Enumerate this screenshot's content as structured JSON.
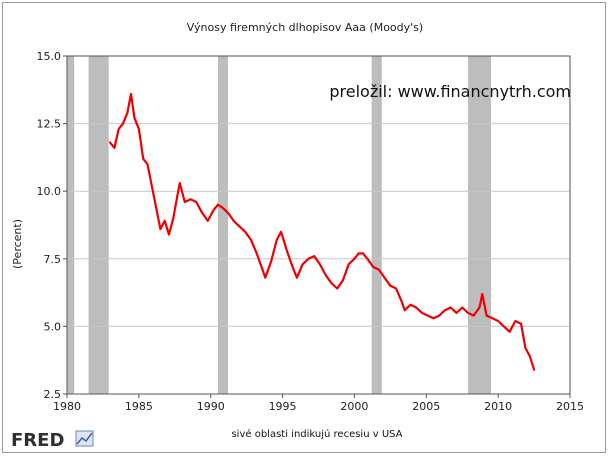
{
  "chart_data": {
    "type": "line",
    "title": "Výnosy firemných dlhopisov Aaa (Moody's)",
    "ylabel": "(Percent)",
    "xlabel": "",
    "xlim": [
      1980,
      2015
    ],
    "ylim": [
      2.5,
      15.0
    ],
    "x_ticks": [
      "1980",
      "1985",
      "1990",
      "1995",
      "2000",
      "2005",
      "2010",
      "2015"
    ],
    "y_ticks": [
      "2.5",
      "5.0",
      "7.5",
      "10.0",
      "12.5",
      "15.0"
    ],
    "grid": true,
    "annotation": "preložil: www.financnytrh.com",
    "footer_note": "sivé oblasti indikujú recesiu v USA",
    "brand": "FRED",
    "line_color": "#ee0000",
    "recession_color": "#bdbdbd",
    "recessions": [
      [
        1980.0,
        1980.5
      ],
      [
        1981.5,
        1982.9
      ],
      [
        1990.5,
        1991.2
      ],
      [
        2001.2,
        2001.9
      ],
      [
        2007.9,
        2009.5
      ]
    ],
    "series": [
      {
        "x": [
          1983.0,
          1983.3,
          1983.6,
          1983.9,
          1984.2,
          1984.45,
          1984.7,
          1985.0,
          1985.3,
          1985.6,
          1985.9,
          1986.2,
          1986.5,
          1986.8,
          1987.1,
          1987.4,
          1987.7,
          1987.85,
          1988.2,
          1988.6,
          1989.0,
          1989.4,
          1989.8,
          1990.2,
          1990.5,
          1990.8,
          1991.2,
          1991.6,
          1992.0,
          1992.4,
          1992.8,
          1993.2,
          1993.6,
          1993.8,
          1994.2,
          1994.6,
          1994.9,
          1995.3,
          1995.7,
          1996.0,
          1996.4,
          1996.8,
          1997.2,
          1997.6,
          1998.0,
          1998.4,
          1998.8,
          1999.2,
          1999.6,
          2000.0,
          2000.3,
          2000.6,
          2000.9,
          2001.3,
          2001.7,
          2002.1,
          2002.5,
          2002.9,
          2003.3,
          2003.5,
          2003.9,
          2004.3,
          2004.7,
          2005.1,
          2005.5,
          2005.9,
          2006.3,
          2006.7,
          2007.1,
          2007.5,
          2007.9,
          2008.3,
          2008.7,
          2008.9,
          2009.2,
          2009.6,
          2010.0,
          2010.4,
          2010.8,
          2011.2,
          2011.6,
          2011.9,
          2012.2,
          2012.5
        ],
        "y": [
          11.8,
          11.6,
          12.3,
          12.5,
          12.9,
          13.6,
          12.7,
          12.3,
          11.2,
          11.0,
          10.2,
          9.4,
          8.6,
          8.9,
          8.4,
          9.0,
          9.9,
          10.3,
          9.6,
          9.7,
          9.6,
          9.2,
          8.9,
          9.3,
          9.5,
          9.4,
          9.2,
          8.9,
          8.7,
          8.5,
          8.2,
          7.7,
          7.1,
          6.8,
          7.4,
          8.2,
          8.5,
          7.8,
          7.2,
          6.8,
          7.3,
          7.5,
          7.6,
          7.3,
          6.9,
          6.6,
          6.4,
          6.7,
          7.3,
          7.5,
          7.7,
          7.7,
          7.5,
          7.2,
          7.1,
          6.8,
          6.5,
          6.4,
          5.9,
          5.6,
          5.8,
          5.7,
          5.5,
          5.4,
          5.3,
          5.4,
          5.6,
          5.7,
          5.5,
          5.7,
          5.5,
          5.4,
          5.7,
          6.2,
          5.4,
          5.3,
          5.2,
          5.0,
          4.8,
          5.2,
          5.1,
          4.2,
          3.9,
          3.4
        ]
      }
    ]
  }
}
